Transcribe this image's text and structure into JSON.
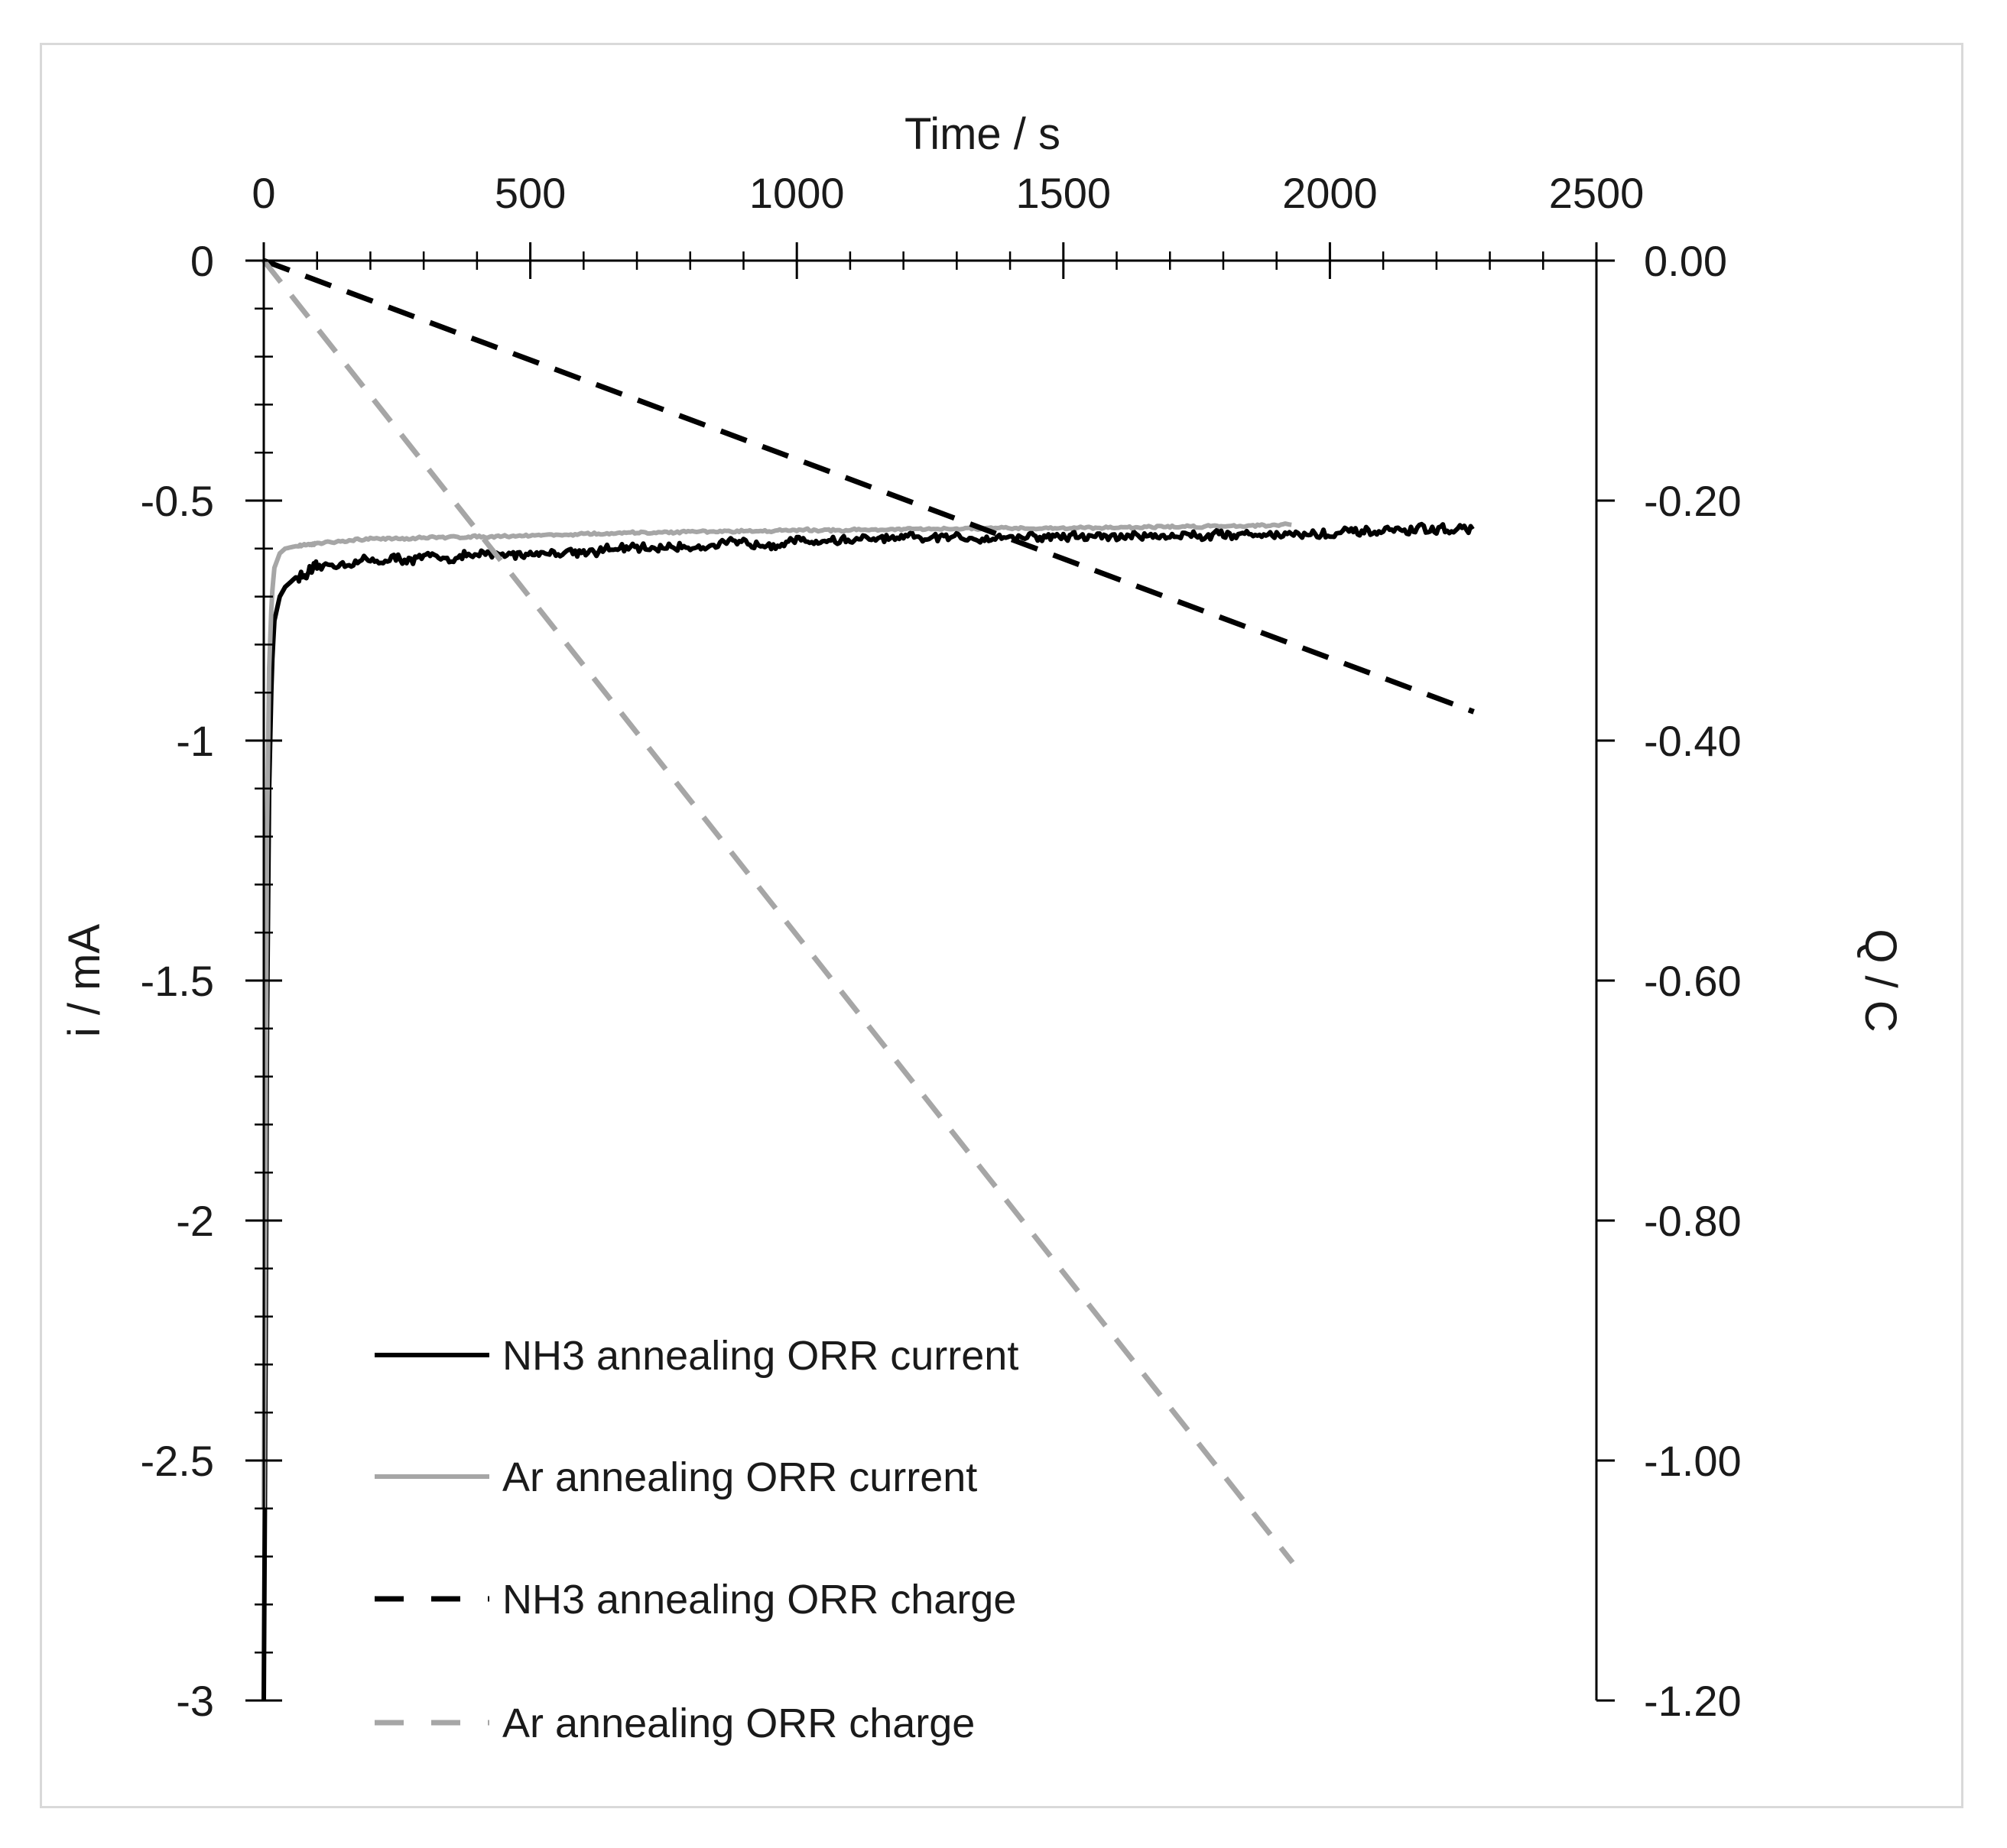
{
  "chart_data": {
    "type": "line",
    "x_axis": {
      "title": "Time / s",
      "position": "top",
      "range": [
        0,
        2500
      ],
      "major_ticks": [
        0,
        500,
        1000,
        1500,
        2000,
        2500
      ],
      "minor_step": 100
    },
    "y_axis_left": {
      "title": "i / mA",
      "range": [
        -3,
        0
      ],
      "major_ticks": [
        0,
        -0.5,
        -1,
        -1.5,
        -2,
        -2.5,
        -3
      ],
      "tick_labels": [
        "0",
        "-0.5",
        "-1",
        "-1.5",
        "-2",
        "-2.5",
        "-3"
      ],
      "minor_step": 0.1
    },
    "y_axis_right": {
      "title": "Q / C",
      "range": [
        -1.2,
        0
      ],
      "major_ticks": [
        0,
        -0.2,
        -0.4,
        -0.6,
        -0.8,
        -1.0,
        -1.2
      ],
      "tick_labels": [
        "0.00",
        "-0.20",
        "-0.40",
        "-0.60",
        "-0.80",
        "-1.00",
        "-1.20"
      ]
    },
    "grid": false,
    "legend_position": "bottom-left",
    "series": [
      {
        "name": "NH3 annealing ORR current",
        "axis": "left",
        "color": "#000000",
        "style": "solid",
        "noise": 0.012,
        "x": [
          0,
          3,
          6,
          10,
          15,
          20,
          30,
          40,
          60,
          80,
          100,
          150,
          200,
          300,
          400,
          500,
          600,
          700,
          800,
          900,
          1000,
          1200,
          1400,
          1600,
          1800,
          2000,
          2100,
          2200,
          2270
        ],
        "y": [
          -3.0,
          -2.4,
          -1.6,
          -1.1,
          -0.85,
          -0.75,
          -0.7,
          -0.68,
          -0.66,
          -0.655,
          -0.64,
          -0.63,
          -0.625,
          -0.62,
          -0.615,
          -0.61,
          -0.605,
          -0.6,
          -0.595,
          -0.59,
          -0.585,
          -0.58,
          -0.575,
          -0.575,
          -0.57,
          -0.57,
          -0.565,
          -0.56,
          -0.56
        ]
      },
      {
        "name": "Ar annealing ORR current",
        "axis": "left",
        "color": "#a6a6a6",
        "style": "solid",
        "noise": 0.003,
        "x": [
          0,
          3,
          6,
          10,
          15,
          20,
          30,
          40,
          60,
          100,
          200,
          400,
          600,
          800,
          1000,
          1200,
          1400,
          1600,
          1800,
          1930
        ],
        "y": [
          -2.6,
          -1.9,
          -1.2,
          -0.85,
          -0.7,
          -0.64,
          -0.61,
          -0.6,
          -0.595,
          -0.59,
          -0.58,
          -0.575,
          -0.57,
          -0.565,
          -0.562,
          -0.56,
          -0.558,
          -0.556,
          -0.553,
          -0.55
        ]
      },
      {
        "name": "NH3 annealing ORR charge",
        "axis": "right",
        "color": "#000000",
        "style": "dashed",
        "x": [
          0,
          2270
        ],
        "y": [
          0,
          -0.376
        ]
      },
      {
        "name": "Ar annealing ORR charge",
        "axis": "right",
        "color": "#a6a6a6",
        "style": "dashed",
        "x": [
          0,
          1930
        ],
        "y": [
          0,
          -1.085
        ]
      }
    ]
  }
}
